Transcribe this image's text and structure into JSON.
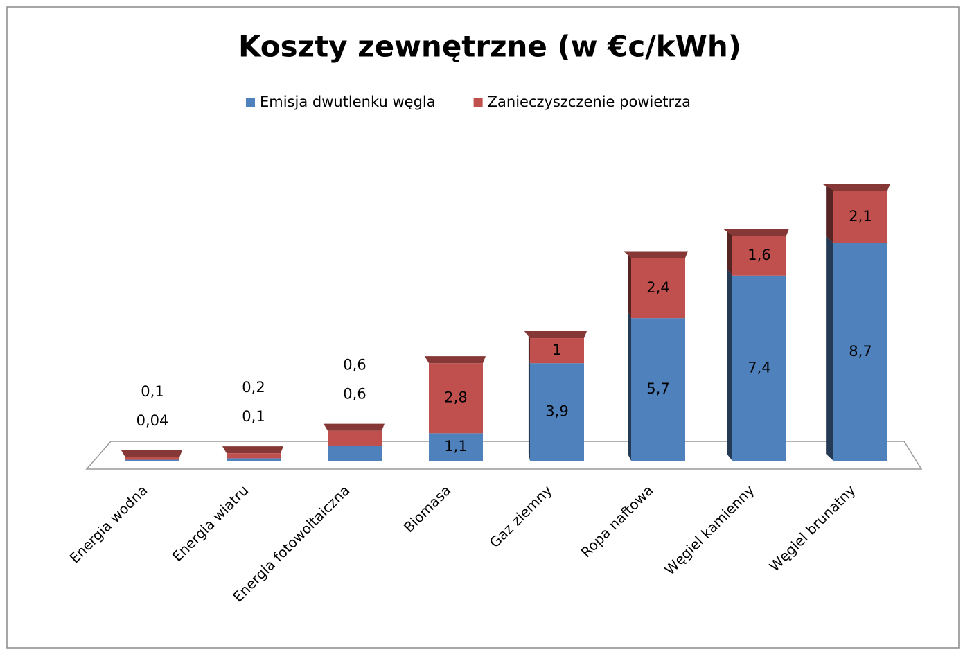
{
  "chart_data": {
    "type": "bar",
    "stacked": true,
    "title": "Koszty zewnętrzne (w €c/kWh)",
    "categories": [
      "Energia wodna",
      "Energia wiatru",
      "Energia fotowoltaiczna",
      "Biomasa",
      "Gaz ziemny",
      "Ropa naftowa",
      "Węgiel kamienny",
      "Węgiel brunatny"
    ],
    "series": [
      {
        "name": "Emisja dwutlenku węgla",
        "color": "#4f81bd",
        "values": [
          0.04,
          0.1,
          0.6,
          1.1,
          3.9,
          5.7,
          7.4,
          8.7
        ],
        "value_labels": [
          "0,04",
          "0,1",
          "0,6",
          "1,1",
          "3,9",
          "5,7",
          "7,4",
          "8,7"
        ]
      },
      {
        "name": "Zanieczyszczenie powietrza",
        "color": "#c0504d",
        "values": [
          0.1,
          0.2,
          0.6,
          2.8,
          1,
          2.4,
          1.6,
          2.1
        ],
        "value_labels": [
          "0,1",
          "0,2",
          "0,6",
          "2,8",
          "1",
          "2,4",
          "1,6",
          "2,1"
        ]
      }
    ],
    "legend": "top"
  }
}
